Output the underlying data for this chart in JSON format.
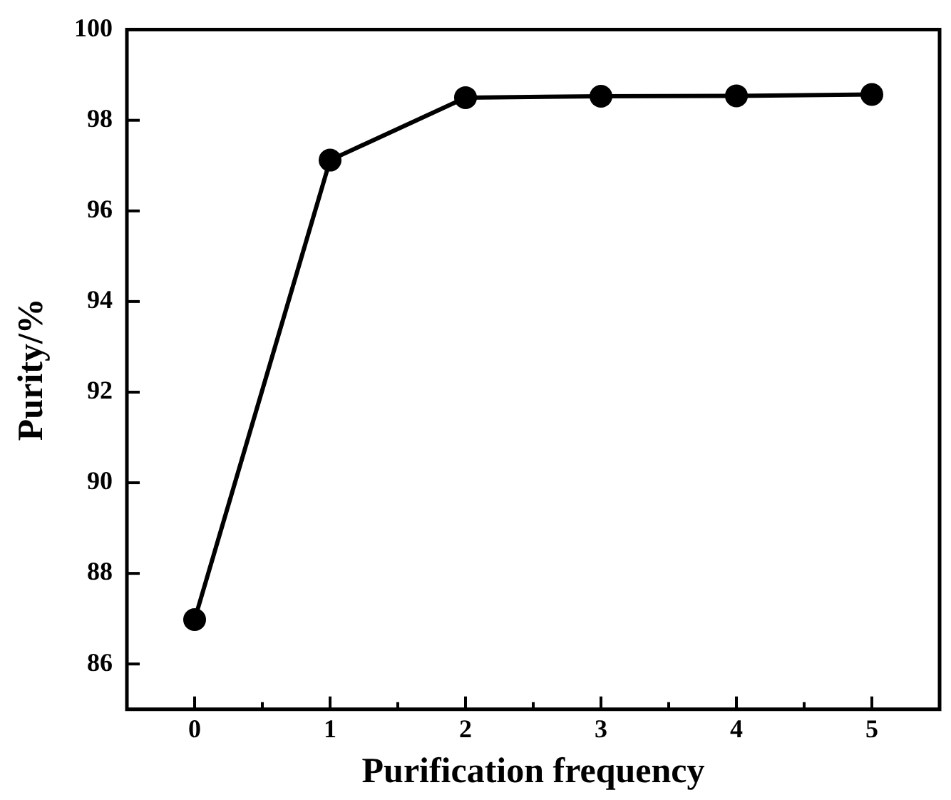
{
  "chart_data": {
    "type": "line",
    "xlabel": "Purification frequency",
    "ylabel": "Purity/%",
    "x": [
      0,
      1,
      2,
      3,
      4,
      5
    ],
    "series": [
      {
        "color": "#000000",
        "values": [
          86.98,
          97.12,
          98.5,
          98.53,
          98.54,
          98.57
        ]
      }
    ],
    "xlim": [
      -0.5,
      5.5
    ],
    "xticks": [
      0,
      {
        "value": 0.5,
        "label": null
      },
      1,
      {
        "value": 1.5,
        "label": null
      },
      2,
      {
        "value": 2.5,
        "label": null
      },
      3,
      {
        "value": 3.5,
        "label": null
      },
      4,
      {
        "value": 4.5,
        "label": null
      },
      5
    ],
    "ylim": [
      85,
      100
    ],
    "yticks": [
      86,
      88,
      90,
      92,
      94,
      96,
      98,
      100
    ],
    "grid": false,
    "legend": false,
    "marker": "circle",
    "line_style": "solid"
  }
}
